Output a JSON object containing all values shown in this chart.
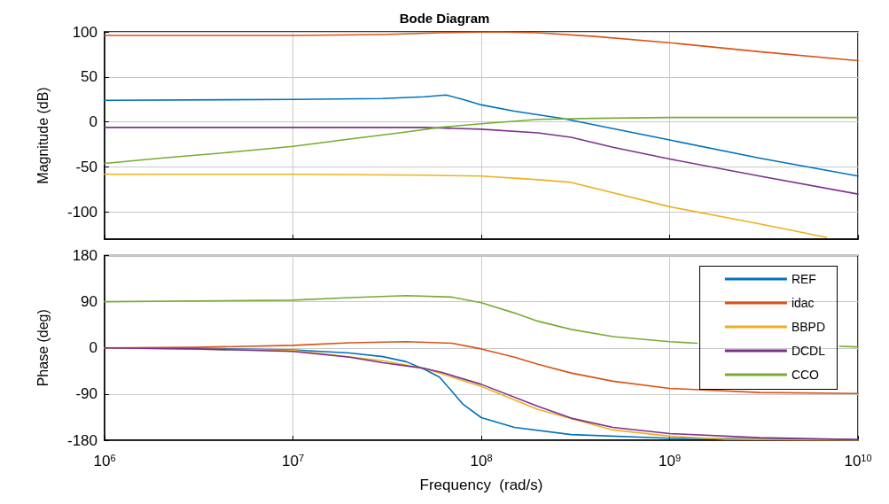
{
  "chart_data": [
    {
      "type": "line",
      "title": "Bode Diagram",
      "ylabel": "Magnitude (dB)",
      "log": "x",
      "xlim": [
        1000000.0,
        10000000000.0
      ],
      "xticks": [
        {
          "value": 1000000.0,
          "label": null
        },
        {
          "value": 10000000.0,
          "label": null
        },
        {
          "value": 100000000.0,
          "label": null
        },
        {
          "value": 1000000000.0,
          "label": null
        },
        {
          "value": 10000000000.0,
          "label": null
        }
      ],
      "ylim": [
        -130,
        100
      ],
      "yticks": [
        -100,
        -50,
        0,
        50,
        100
      ],
      "tick_labels": "y",
      "grid": true,
      "legend": false,
      "marker": "none",
      "line_style": "solid",
      "series": [
        {
          "color": "#0072bd",
          "x": [
            1000000.0,
            10000000.0,
            30000000.0,
            50000000.0,
            65000000.0,
            80000000.0,
            100000000.0,
            150000000.0,
            270000000.0,
            1000000000.0,
            3000000000.0,
            10000000000.0
          ],
          "values": [
            24,
            25,
            26,
            28,
            30,
            25,
            19,
            12,
            4,
            -20,
            -40,
            -60
          ]
        },
        {
          "color": "#d95319",
          "x": [
            1000000.0,
            10000000.0,
            30000000.0,
            60000000.0,
            120000000.0,
            200000000.0,
            400000000.0,
            1000000000.0,
            3000000000.0,
            10000000000.0
          ],
          "values": [
            96,
            96,
            97,
            99,
            100,
            99,
            95,
            88,
            78,
            68
          ]
        },
        {
          "color": "#edb120",
          "x": [
            1000000.0,
            10000000.0,
            50000000.0,
            100000000.0,
            200000000.0,
            300000000.0,
            1000000000.0,
            3000000000.0,
            6800000000.0
          ],
          "values": [
            -58,
            -58,
            -59,
            -60,
            -64,
            -67,
            -94,
            -113,
            -128
          ]
        },
        {
          "color": "#7e2f8e",
          "x": [
            1000000.0,
            10000000.0,
            50000000.0,
            100000000.0,
            200000000.0,
            300000000.0,
            500000000.0,
            1000000000.0,
            3000000000.0,
            10000000000.0
          ],
          "values": [
            -6,
            -6,
            -6,
            -8,
            -12,
            -17,
            -28,
            -41,
            -60,
            -80
          ]
        },
        {
          "color": "#77ac30",
          "x": [
            1000000.0,
            2000000.0,
            5000000.0,
            10000000.0,
            20000000.0,
            40000000.0,
            60000000.0,
            100000000.0,
            200000000.0,
            400000000.0,
            1000000000.0,
            10000000000.0
          ],
          "values": [
            -46,
            -40,
            -33,
            -27,
            -19,
            -11,
            -6,
            -2,
            3,
            4,
            5,
            5
          ]
        }
      ]
    },
    {
      "type": "line",
      "xlabel": "Frequency  (rad/s)",
      "ylabel": "Phase (deg)",
      "log": "x",
      "xlim": [
        1000000.0,
        10000000000.0
      ],
      "xticks": [
        {
          "value": 1000000.0,
          "label": "10$^{6}$"
        },
        {
          "value": 10000000.0,
          "label": "10$^{7}$"
        },
        {
          "value": 100000000.0,
          "label": "10$^{8}$"
        },
        {
          "value": 1000000000.0,
          "label": "10$^{9}$"
        },
        {
          "value": 10000000000.0,
          "label": "10$^{10}$"
        }
      ],
      "ylim": [
        -180,
        180
      ],
      "yticks": [
        -180,
        -90,
        0,
        90,
        180
      ],
      "grid": true,
      "legend": "top right",
      "marker": "none",
      "line_style": "solid",
      "series": [
        {
          "name": "REF",
          "color": "#0072bd",
          "x": [
            1000000.0,
            3000000.0,
            10000000.0,
            20000000.0,
            30000000.0,
            40000000.0,
            50000000.0,
            60000000.0,
            70000000.0,
            80000000.0,
            100000000.0,
            150000000.0,
            300000000.0,
            1000000000.0,
            10000000000.0
          ],
          "values": [
            0,
            -1,
            -4,
            -10,
            -17,
            -27,
            -42,
            -57,
            -85,
            -110,
            -136,
            -155,
            -169,
            -176,
            -179
          ]
        },
        {
          "name": "idac",
          "color": "#d95319",
          "x": [
            1000000.0,
            3000000.0,
            10000000.0,
            20000000.0,
            40000000.0,
            70000000.0,
            100000000.0,
            150000000.0,
            200000000.0,
            300000000.0,
            500000000.0,
            1000000000.0,
            3000000000.0,
            10000000000.0
          ],
          "values": [
            0,
            1,
            5,
            10,
            12,
            9,
            -2,
            -18,
            -32,
            -49,
            -65,
            -79,
            -87,
            -89
          ]
        },
        {
          "name": "BBPD",
          "color": "#edb120",
          "x": [
            1000000.0,
            10000000.0,
            30000000.0,
            50000000.0,
            100000000.0,
            200000000.0,
            500000000.0,
            1000000000.0,
            2000000000.0,
            10000000000.0
          ],
          "values": [
            0,
            -5,
            -25,
            -40,
            -75,
            -120,
            -160,
            -172,
            -178,
            -180
          ]
        },
        {
          "name": "DCDL",
          "color": "#7e2f8e",
          "x": [
            1000000.0,
            3000000.0,
            10000000.0,
            20000000.0,
            30000000.0,
            50000000.0,
            62000000.0,
            100000000.0,
            200000000.0,
            300000000.0,
            500000000.0,
            1000000000.0,
            3000000000.0,
            10000000000.0
          ],
          "values": [
            0,
            -2,
            -7,
            -18,
            -29,
            -40,
            -48,
            -71,
            -114,
            -137,
            -155,
            -167,
            -175,
            -179
          ]
        },
        {
          "name": "CCO",
          "color": "#77ac30",
          "x": [
            1000000.0,
            10000000.0,
            20000000.0,
            40000000.0,
            70000000.0,
            100000000.0,
            150000000.0,
            200000000.0,
            300000000.0,
            500000000.0,
            1000000000.0,
            1400000000.0,
            3000000000.0,
            8000000000.0,
            10000000000.0
          ],
          "values": [
            90,
            93,
            98,
            102,
            99,
            88,
            68,
            52,
            36,
            22,
            12,
            9,
            null,
            3,
            2
          ]
        }
      ]
    }
  ]
}
